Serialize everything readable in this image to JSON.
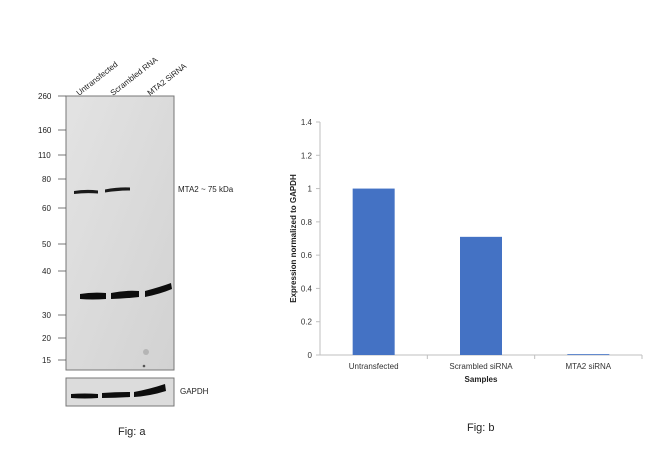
{
  "figure_a": {
    "caption": "Fig: a",
    "lane_labels": [
      "Untransfected",
      "Scrambled RNA",
      "MTA2  SiRNA"
    ],
    "marker_labels": [
      "260",
      "160",
      "110",
      "80",
      "60",
      "50",
      "40",
      "30",
      "20",
      "15"
    ],
    "band_label": "MTA2 ~ 75 kDa",
    "loading_control_label": "GAPDH"
  },
  "figure_b": {
    "caption": "Fig: b"
  },
  "chart_data": {
    "type": "bar",
    "categories": [
      "Untransfected",
      "Scrambled siRNA",
      "MTA2 siRNA"
    ],
    "values": [
      1.0,
      0.71,
      0.005
    ],
    "yticks": [
      "0",
      "0.2",
      "0.4",
      "0.6",
      "0.8",
      "1",
      "1.2",
      "1.4"
    ],
    "title": "",
    "xlabel": "Samples",
    "ylabel": "Expression normalized to GAPDH",
    "ylim": [
      0,
      1.4
    ],
    "bar_color": "#4472C4",
    "grid": false,
    "legend": false
  }
}
